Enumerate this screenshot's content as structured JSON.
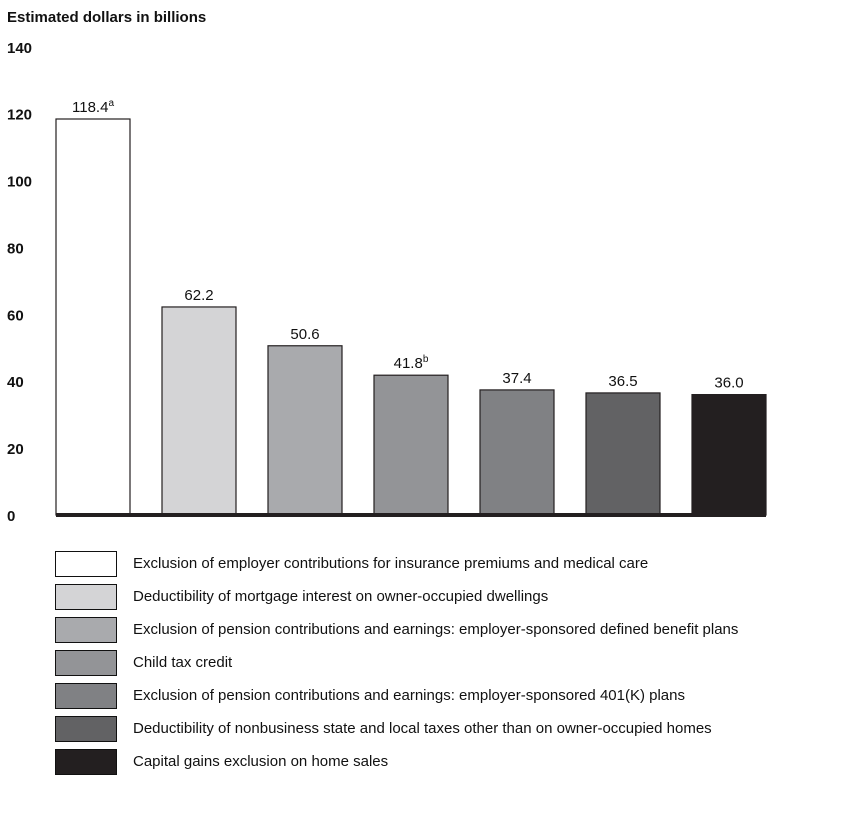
{
  "chart_data": {
    "type": "bar",
    "ylabel": "Estimated dollars in billions",
    "ylim": [
      0,
      140
    ],
    "yticks": [
      "0",
      "20",
      "40",
      "60",
      "80",
      "100",
      "120",
      "140"
    ],
    "grid": false,
    "legend_position": "bottom",
    "categories": [
      "Exclusion of employer contributions for insurance premiums and medical care",
      "Deductibility of mortgage interest on owner-occupied dwellings",
      "Exclusion of pension contributions and earnings: employer-sponsored defined benefit plans",
      "Child tax credit",
      "Exclusion of pension contributions and earnings: employer-sponsored 401(K) plans",
      "Deductibility of nonbusiness state and local taxes other than on owner-occupied homes",
      "Capital gains exclusion on home sales"
    ],
    "values": [
      118.4,
      62.2,
      50.6,
      41.8,
      37.4,
      36.5,
      36.0
    ],
    "value_labels": [
      "118.4",
      "62.2",
      "50.6",
      "41.8",
      "37.4",
      "36.5",
      "36.0"
    ],
    "label_superscripts": [
      "a",
      "",
      "",
      "b",
      "",
      "",
      ""
    ],
    "colors": [
      "#ffffff",
      "#d4d4d6",
      "#a9aaad",
      "#939497",
      "#808184",
      "#626264",
      "#231f20"
    ]
  }
}
